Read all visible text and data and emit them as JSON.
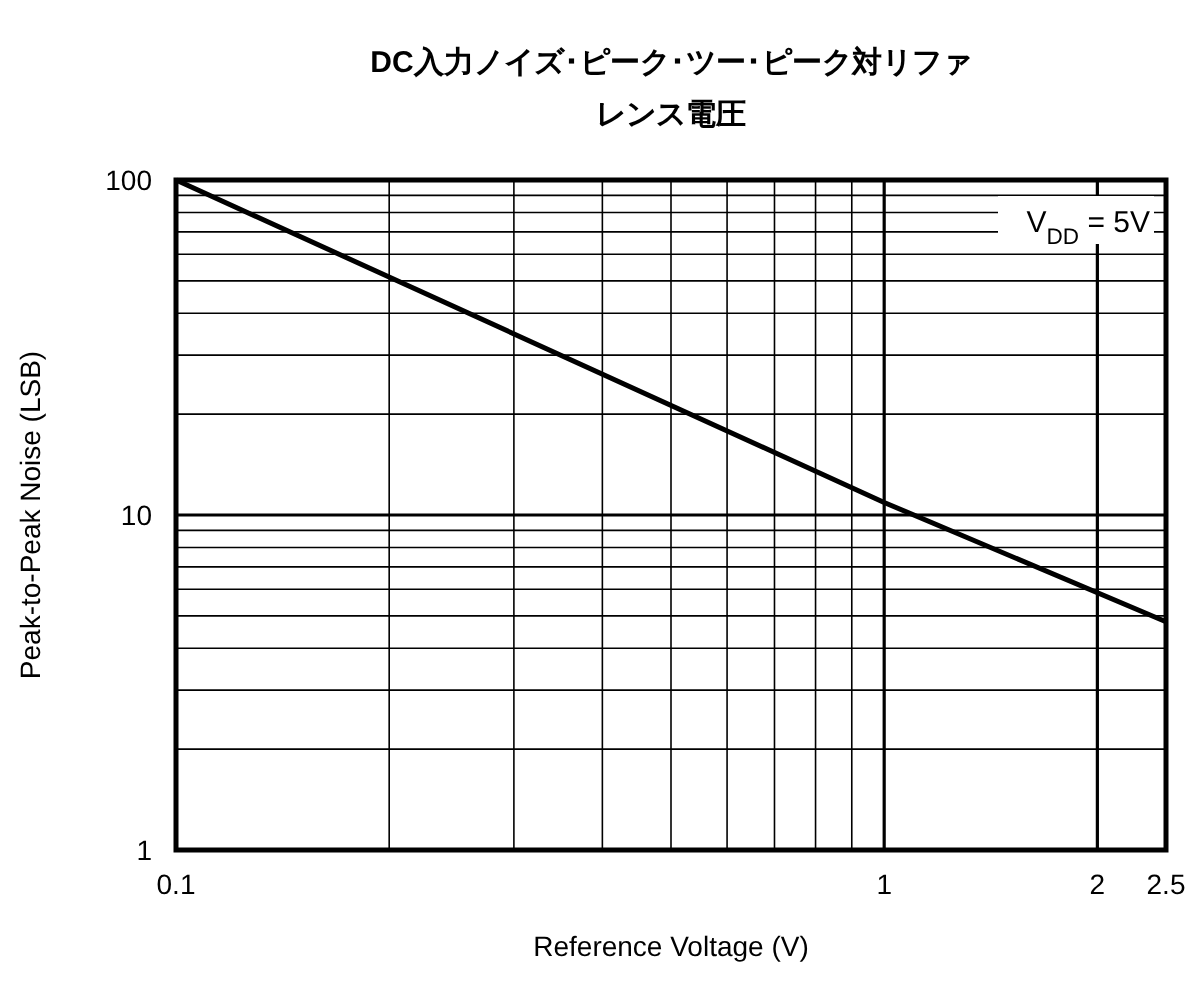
{
  "chart_data": {
    "type": "line",
    "title": "DC入力ノイズ･ピーク･ツー･ピーク対リファレンス電圧",
    "xlabel": "Reference Voltage (V)",
    "ylabel": "Peak-to-Peak Noise (LSB)",
    "x": [
      0.1,
      1,
      2.5
    ],
    "series": [
      {
        "color": "#000000",
        "values": [
          100,
          10.9,
          4.8
        ]
      }
    ],
    "log": "xy",
    "xlim": [
      0.1,
      2.5
    ],
    "ylim": [
      1,
      100
    ],
    "xticks": [
      0.1,
      {
        "value": 0.2,
        "label": null
      },
      {
        "value": 0.3,
        "label": null
      },
      {
        "value": 0.4,
        "label": null
      },
      {
        "value": 0.5,
        "label": null
      },
      {
        "value": 0.6,
        "label": null
      },
      {
        "value": 0.7,
        "label": null
      },
      {
        "value": 0.8,
        "label": null
      },
      {
        "value": 0.9,
        "label": null
      },
      1,
      2,
      2.5
    ],
    "yticks": [
      1,
      {
        "value": 2,
        "label": null
      },
      {
        "value": 3,
        "label": null
      },
      {
        "value": 4,
        "label": null
      },
      {
        "value": 5,
        "label": null
      },
      {
        "value": 6,
        "label": null
      },
      {
        "value": 7,
        "label": null
      },
      {
        "value": 8,
        "label": null
      },
      {
        "value": 9,
        "label": null
      },
      10,
      {
        "value": 20,
        "label": null
      },
      {
        "value": 30,
        "label": null
      },
      {
        "value": 40,
        "label": null
      },
      {
        "value": 50,
        "label": null
      },
      {
        "value": 60,
        "label": null
      },
      {
        "value": 70,
        "label": null
      },
      {
        "value": 80,
        "label": null
      },
      {
        "value": 90,
        "label": null
      },
      100
    ],
    "grid": true,
    "marker": "none",
    "line_style": "solid",
    "annotations": [
      "V$_{DD}$ = 5V"
    ]
  }
}
